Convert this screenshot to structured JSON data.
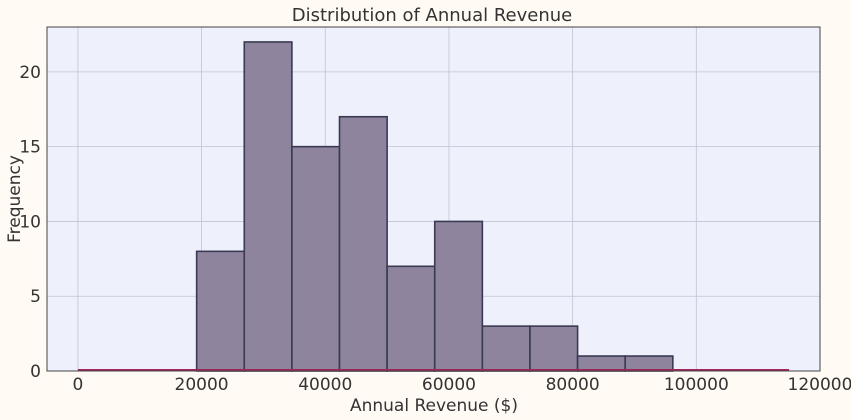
{
  "chart_data": {
    "type": "bar",
    "title": "Distribution of Annual Revenue",
    "xlabel": "Annual Revenue ($)",
    "ylabel": "Frequency",
    "xlim": [
      -5000,
      120000
    ],
    "ylim": [
      0,
      23
    ],
    "x_ticks": [
      0,
      20000,
      40000,
      60000,
      80000,
      100000,
      120000
    ],
    "x_tick_labels": [
      "0",
      "20000",
      "40000",
      "60000",
      "80000",
      "100000",
      "120000"
    ],
    "y_ticks": [
      0,
      5,
      10,
      15,
      20
    ],
    "y_tick_labels": [
      "0",
      "5",
      "10",
      "15",
      "20"
    ],
    "bins": [
      {
        "start": 19200,
        "end": 26900,
        "count": 8
      },
      {
        "start": 26900,
        "end": 34600,
        "count": 22
      },
      {
        "start": 34600,
        "end": 42300,
        "count": 15
      },
      {
        "start": 42300,
        "end": 50000,
        "count": 17
      },
      {
        "start": 50000,
        "end": 57700,
        "count": 7
      },
      {
        "start": 57700,
        "end": 65400,
        "count": 10
      },
      {
        "start": 65400,
        "end": 73100,
        "count": 3
      },
      {
        "start": 73100,
        "end": 80800,
        "count": 3
      },
      {
        "start": 80800,
        "end": 88500,
        "count": 1
      },
      {
        "start": 88500,
        "end": 96200,
        "count": 1
      }
    ],
    "density_line": {
      "x": [
        0,
        115000
      ],
      "y": [
        0,
        0
      ]
    },
    "grid": true,
    "colors": {
      "background": "#fffaf3",
      "plot_bg": "#eef0fb",
      "bar_fill": "#8e849e",
      "bar_edge": "#3a3a52",
      "grid": "#c2c4d2",
      "density_line": "#a0245a",
      "text": "#333333"
    }
  }
}
